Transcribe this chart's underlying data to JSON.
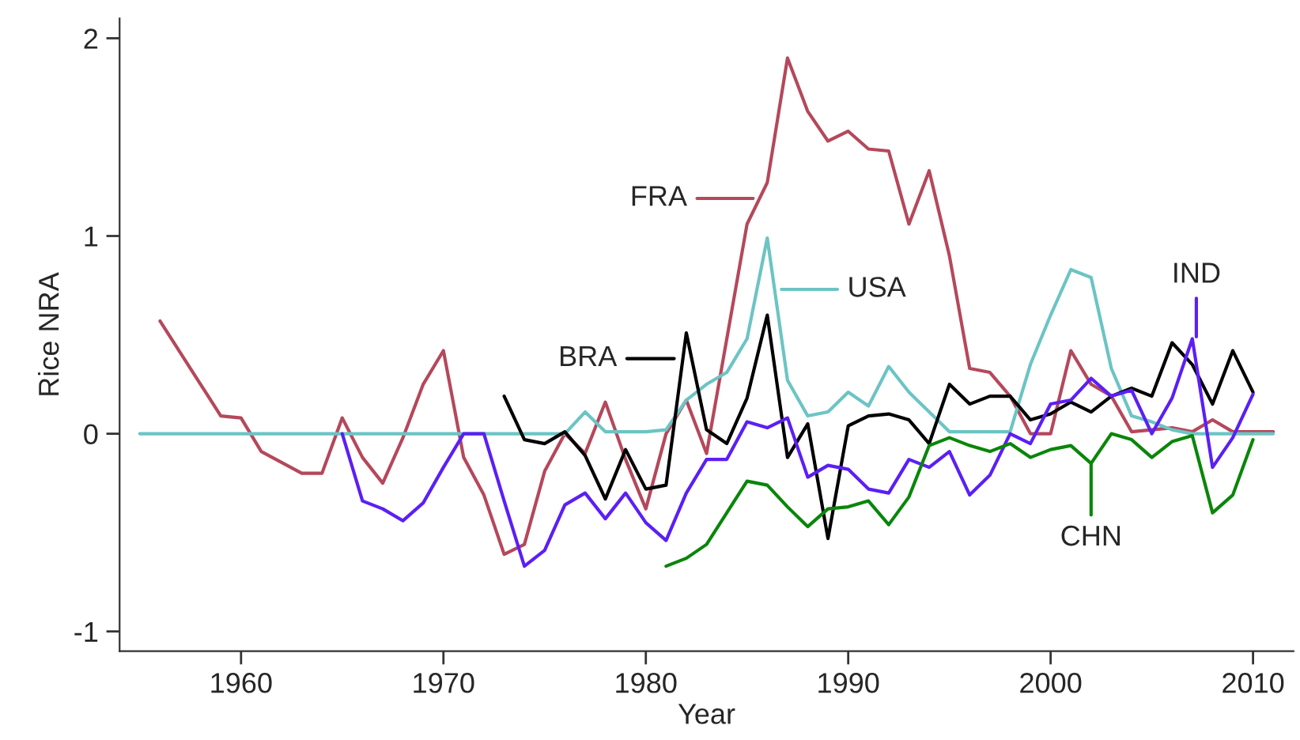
{
  "chart_data": {
    "type": "line",
    "xlabel": "Year",
    "ylabel": "Rice NRA",
    "xlim": [
      1954,
      2012
    ],
    "xticks": [
      1960,
      1970,
      1980,
      1990,
      2000,
      2010
    ],
    "ylim": [
      -1.1,
      2.1
    ],
    "yticks": [
      -1,
      0,
      1,
      2
    ],
    "grid": false,
    "legend": false,
    "series": [
      {
        "color": "#b5485b",
        "x": [
          1956,
          1959,
          1960,
          1961,
          1963,
          1964,
          1965,
          1966,
          1967,
          1968,
          1969,
          1970,
          1971,
          1972,
          1973,
          1974,
          1975,
          1976,
          1977,
          1978,
          1979,
          1980,
          1981,
          1982,
          1983,
          1984,
          1985,
          1986,
          1987,
          1988,
          1989,
          1990,
          1991,
          1992,
          1993,
          1994,
          1995,
          1996,
          1997,
          1998,
          1999,
          2000,
          2001,
          2002,
          2003,
          2004,
          2005,
          2006,
          2007,
          2008,
          2009,
          2010,
          2011
        ],
        "values": [
          0.57,
          0.09,
          0.08,
          -0.09,
          -0.2,
          -0.2,
          0.08,
          -0.12,
          -0.25,
          -0.02,
          0.25,
          0.42,
          -0.12,
          -0.31,
          -0.61,
          -0.56,
          -0.19,
          0.0,
          -0.1,
          0.16,
          -0.13,
          -0.38,
          0.0,
          0.17,
          -0.1,
          0.48,
          1.06,
          1.27,
          1.9,
          1.63,
          1.48,
          1.53,
          1.44,
          1.43,
          1.06,
          1.33,
          0.9,
          0.33,
          0.31,
          0.19,
          0.0,
          0.0,
          0.42,
          0.25,
          0.19,
          0.01,
          0.02,
          0.03,
          0.01,
          0.07,
          0.01,
          0.01,
          0.01
        ]
      },
      {
        "color": "#6cc4c4",
        "x": [
          1955,
          1956,
          1957,
          1958,
          1959,
          1960,
          1961,
          1962,
          1963,
          1964,
          1965,
          1966,
          1967,
          1968,
          1969,
          1970,
          1971,
          1972,
          1973,
          1974,
          1975,
          1976,
          1977,
          1978,
          1979,
          1980,
          1981,
          1982,
          1983,
          1984,
          1985,
          1986,
          1987,
          1988,
          1989,
          1990,
          1991,
          1992,
          1993,
          1994,
          1995,
          1996,
          1997,
          1998,
          1999,
          2000,
          2001,
          2002,
          2003,
          2004,
          2005,
          2006,
          2007,
          2008,
          2009,
          2010,
          2011
        ],
        "values": [
          0,
          0,
          0,
          0,
          0,
          0,
          0,
          0,
          0,
          0,
          0,
          0,
          0,
          0,
          0,
          0,
          0,
          0,
          0,
          0,
          0,
          0,
          0.11,
          0.01,
          0.01,
          0.01,
          0.02,
          0.17,
          0.25,
          0.31,
          0.48,
          0.99,
          0.27,
          0.09,
          0.11,
          0.21,
          0.14,
          0.34,
          0.21,
          0.11,
          0.01,
          0.01,
          0.01,
          0.01,
          0.35,
          0.6,
          0.83,
          0.79,
          0.33,
          0.09,
          0.06,
          0.02,
          0.0,
          0.0,
          0.0,
          0.0,
          0.0
        ]
      },
      {
        "color": "#000000",
        "x": [
          1973,
          1974,
          1975,
          1976,
          1977,
          1978,
          1979,
          1980,
          1981,
          1982,
          1983,
          1984,
          1985,
          1986,
          1987,
          1988,
          1989,
          1990,
          1991,
          1992,
          1993,
          1994,
          1995,
          1996,
          1997,
          1998,
          1999,
          2000,
          2001,
          2002,
          2003,
          2004,
          2005,
          2006,
          2007,
          2008,
          2009,
          2010
        ],
        "values": [
          0.19,
          -0.03,
          -0.05,
          0.01,
          -0.11,
          -0.33,
          -0.08,
          -0.28,
          -0.26,
          0.51,
          0.02,
          -0.05,
          0.18,
          0.6,
          -0.12,
          0.05,
          -0.53,
          0.04,
          0.09,
          0.1,
          0.07,
          -0.05,
          0.25,
          0.15,
          0.19,
          0.19,
          0.07,
          0.1,
          0.16,
          0.11,
          0.19,
          0.23,
          0.19,
          0.46,
          0.35,
          0.15,
          0.42,
          0.21
        ]
      },
      {
        "color": "#5b1ff5",
        "x": [
          1965,
          1966,
          1967,
          1968,
          1969,
          1970,
          1971,
          1972,
          1973,
          1974,
          1975,
          1976,
          1977,
          1978,
          1979,
          1980,
          1981,
          1982,
          1983,
          1984,
          1985,
          1986,
          1987,
          1988,
          1989,
          1990,
          1991,
          1992,
          1993,
          1994,
          1995,
          1996,
          1997,
          1998,
          1999,
          2000,
          2001,
          2002,
          2003,
          2004,
          2005,
          2006,
          2007,
          2008,
          2009,
          2010
        ],
        "values": [
          0,
          -0.34,
          -0.38,
          -0.44,
          -0.35,
          -0.17,
          0,
          0,
          -0.34,
          -0.67,
          -0.59,
          -0.36,
          -0.3,
          -0.43,
          -0.3,
          -0.45,
          -0.54,
          -0.3,
          -0.13,
          -0.13,
          0.06,
          0.03,
          0.08,
          -0.22,
          -0.16,
          -0.18,
          -0.28,
          -0.3,
          -0.13,
          -0.17,
          -0.09,
          -0.31,
          -0.21,
          0.0,
          -0.05,
          0.15,
          0.17,
          0.28,
          0.19,
          0.22,
          0.0,
          0.18,
          0.48,
          -0.17,
          -0.02,
          0.2
        ]
      },
      {
        "color": "#0a860a",
        "x": [
          1981,
          1982,
          1983,
          1984,
          1985,
          1986,
          1987,
          1988,
          1989,
          1990,
          1991,
          1992,
          1993,
          1994,
          1995,
          1996,
          1997,
          1998,
          1999,
          2000,
          2001,
          2002,
          2003,
          2004,
          2005,
          2006,
          2007,
          2008,
          2009,
          2010
        ],
        "values": [
          -0.67,
          -0.63,
          -0.56,
          -0.4,
          -0.24,
          -0.26,
          -0.37,
          -0.47,
          -0.38,
          -0.37,
          -0.34,
          -0.46,
          -0.32,
          -0.06,
          -0.02,
          -0.06,
          -0.09,
          -0.05,
          -0.12,
          -0.08,
          -0.06,
          -0.15,
          0.0,
          -0.03,
          -0.12,
          -0.04,
          -0.01,
          -0.4,
          -0.31,
          -0.03
        ]
      }
    ],
    "annotations": [
      {
        "text": "FRA",
        "x": 1985.3,
        "y": 1.19
      },
      {
        "text": "USA",
        "x": 1986.7,
        "y": 0.73
      },
      {
        "text": "BRA",
        "x": 1981.4,
        "y": 0.38
      },
      {
        "text": "IND",
        "x": 2007.2,
        "y": 0.49
      },
      {
        "text": "CHN",
        "x": 2002,
        "y": -0.15
      }
    ]
  }
}
